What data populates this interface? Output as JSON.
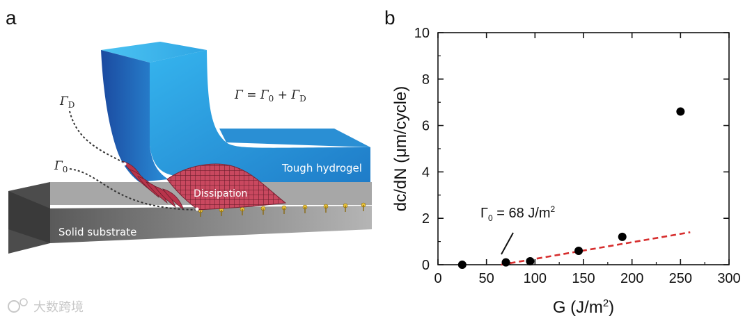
{
  "panel_a": {
    "letter": "a",
    "formula": {
      "gamma": "Γ",
      "eq": " = ",
      "gamma0": "Γ",
      "sub0": "0",
      "plus": " + ",
      "gammaD": "Γ",
      "subD": "D"
    },
    "label_gamma_d": {
      "gamma": "Γ",
      "sub": "D"
    },
    "label_gamma_0": {
      "gamma": "Γ",
      "sub": "0"
    },
    "hydrogel_label": "Tough hydrogel",
    "dissipation_label": "Dissipation",
    "substrate_label": "Solid substrate"
  },
  "panel_b": {
    "letter": "b",
    "annotation": {
      "gamma": "Γ",
      "sub": "0",
      "text": " = 68 J/m",
      "sup": "2"
    }
  },
  "watermark": "大数跨境",
  "colors": {
    "hydrogel_light": "#2aa8e6",
    "hydrogel_dark": "#1a4fa8",
    "dissipation": "#c9485f",
    "substrate": "#8c8c8c",
    "fit_line": "#d62d2d",
    "points": "#000000"
  },
  "chart_data": {
    "type": "scatter",
    "title": "",
    "xlabel": {
      "prefix": "G (J/m",
      "sup": "2",
      "suffix": ")"
    },
    "ylabel": "dc/dN (μm/cycle)",
    "xlim": [
      0,
      300
    ],
    "ylim": [
      0,
      10
    ],
    "xticks": [
      0,
      50,
      100,
      150,
      200,
      250,
      300
    ],
    "yticks": [
      0,
      2,
      4,
      6,
      8,
      10
    ],
    "series": [
      {
        "name": "data",
        "x": [
          25,
          70,
          95,
          145,
          190,
          250
        ],
        "y": [
          0.0,
          0.1,
          0.15,
          0.6,
          1.2,
          6.6
        ]
      }
    ],
    "fit_line": {
      "name": "linear fit",
      "x": [
        65,
        260
      ],
      "y": [
        0.0,
        1.4
      ],
      "style": "dashed"
    }
  }
}
